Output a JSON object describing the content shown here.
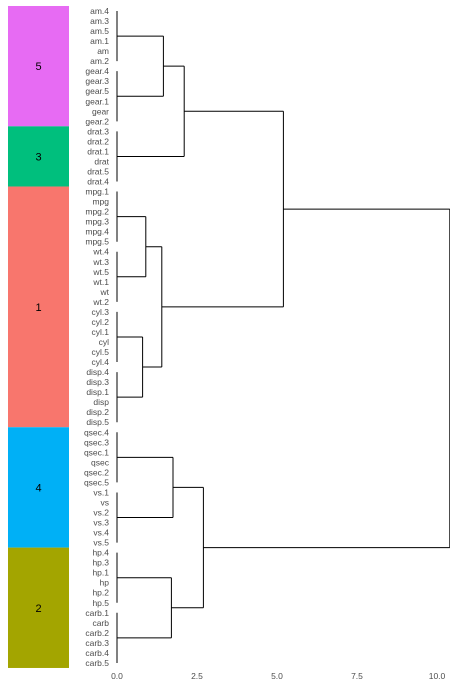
{
  "chart_data": {
    "type": "dendrogram",
    "orientation": "horizontal",
    "xlim": [
      0,
      10.4
    ],
    "x_ticks": [
      {
        "value": 0,
        "label": "0.0"
      },
      {
        "value": 2.5,
        "label": "2.5"
      },
      {
        "value": 5,
        "label": "5.0"
      },
      {
        "value": 7.5,
        "label": "7.5"
      },
      {
        "value": 10,
        "label": "10.0"
      }
    ],
    "leaves": [
      "am.4",
      "am.3",
      "am.5",
      "am.1",
      "am",
      "am.2",
      "gear.4",
      "gear.3",
      "gear.5",
      "gear.1",
      "gear",
      "gear.2",
      "drat.3",
      "drat.2",
      "drat.1",
      "drat",
      "drat.5",
      "drat.4",
      "mpg.1",
      "mpg",
      "mpg.2",
      "mpg.3",
      "mpg.4",
      "mpg.5",
      "wt.4",
      "wt.3",
      "wt.5",
      "wt.1",
      "wt",
      "wt.2",
      "cyl.3",
      "cyl.2",
      "cyl.1",
      "cyl",
      "cyl.5",
      "cyl.4",
      "disp.4",
      "disp.3",
      "disp.1",
      "disp",
      "disp.2",
      "disp.5",
      "qsec.4",
      "qsec.3",
      "qsec.1",
      "qsec",
      "qsec.2",
      "qsec.5",
      "vs.1",
      "vs",
      "vs.2",
      "vs.3",
      "vs.4",
      "vs.5",
      "hp.4",
      "hp.3",
      "hp.1",
      "hp",
      "hp.2",
      "hp.5",
      "carb.1",
      "carb",
      "carb.2",
      "carb.3",
      "carb.4",
      "carb.5"
    ],
    "clusters": [
      {
        "label": "5",
        "start": 0,
        "end": 11,
        "color": "#e76bf3"
      },
      {
        "label": "3",
        "start": 12,
        "end": 17,
        "color": "#00bf7d"
      },
      {
        "label": "1",
        "start": 18,
        "end": 41,
        "color": "#f8766d"
      },
      {
        "label": "4",
        "start": 42,
        "end": 53,
        "color": "#00b0f6"
      },
      {
        "label": "2",
        "start": 54,
        "end": 65,
        "color": "#a3a500"
      }
    ],
    "merges": [
      {
        "id": "am",
        "a": [
          0,
          5
        ],
        "h": 0
      },
      {
        "id": "gear",
        "a": [
          6,
          11
        ],
        "h": 0
      },
      {
        "id": "drat",
        "a": [
          12,
          17
        ],
        "h": 0
      },
      {
        "id": "mpg",
        "a": [
          18,
          23
        ],
        "h": 0
      },
      {
        "id": "wt",
        "a": [
          24,
          29
        ],
        "h": 0
      },
      {
        "id": "cyl",
        "a": [
          30,
          35
        ],
        "h": 0
      },
      {
        "id": "disp",
        "a": [
          36,
          41
        ],
        "h": 0
      },
      {
        "id": "qsec",
        "a": [
          42,
          47
        ],
        "h": 0
      },
      {
        "id": "vs",
        "a": [
          48,
          53
        ],
        "h": 0
      },
      {
        "id": "hp",
        "a": [
          54,
          59
        ],
        "h": 0
      },
      {
        "id": "carb",
        "a": [
          60,
          65
        ],
        "h": 0
      },
      {
        "id": "n_am_gear",
        "a": "am",
        "b": "gear",
        "h": 1.45
      },
      {
        "id": "n_amg_drat",
        "a": "n_am_gear",
        "b": "drat",
        "h": 2.1
      },
      {
        "id": "n_mpg_wt",
        "a": "mpg",
        "b": "wt",
        "h": 0.9
      },
      {
        "id": "n_cyl_disp",
        "a": "cyl",
        "b": "disp",
        "h": 0.8
      },
      {
        "id": "n_mpgwt_cyldisp",
        "a": "n_mpg_wt",
        "b": "n_cyl_disp",
        "h": 1.4
      },
      {
        "id": "n_top_upper",
        "a": "n_amg_drat",
        "b": "n_mpgwt_cyldisp",
        "h": 5.2
      },
      {
        "id": "n_qsec_vs",
        "a": "qsec",
        "b": "vs",
        "h": 1.75
      },
      {
        "id": "n_hp_carb",
        "a": "hp",
        "b": "carb",
        "h": 1.7
      },
      {
        "id": "n_lower",
        "a": "n_qsec_vs",
        "b": "n_hp_carb",
        "h": 2.7
      },
      {
        "id": "n_root",
        "a": "n_top_upper",
        "b": "n_lower",
        "h": 10.4
      }
    ]
  }
}
